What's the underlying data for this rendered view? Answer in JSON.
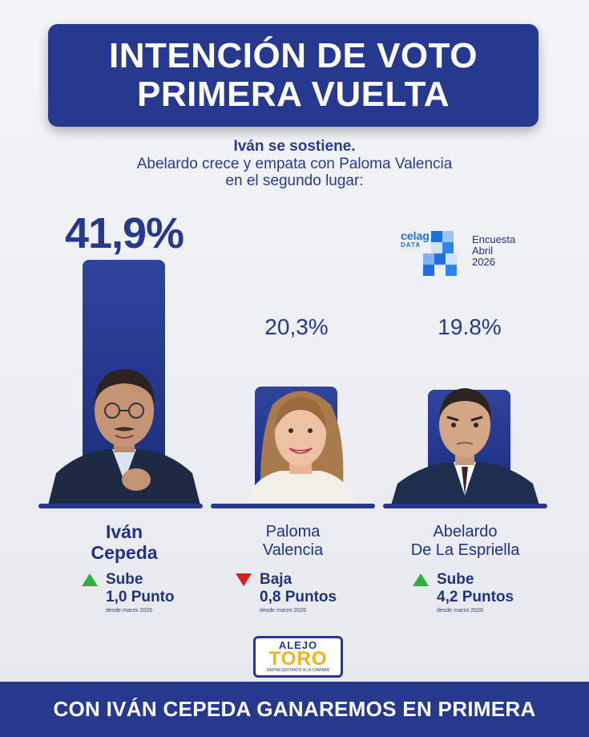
{
  "header": {
    "title_line1": "INTENCIÓN DE VOTO",
    "title_line2": "PRIMERA VUELTA"
  },
  "subtitle": {
    "line1": "Iván se sostiene.",
    "line2": "Abelardo crece y empata con Paloma Valencia",
    "line3": "en el segundo lugar:"
  },
  "source": {
    "logo_word": "celag",
    "logo_sub": "DATA",
    "survey_line1": "Encuesta",
    "survey_line2": "Abril",
    "survey_line3": "2026"
  },
  "chart_data": {
    "type": "bar",
    "categories": [
      "Iván Cepeda",
      "Paloma Valencia",
      "Abelardo De La Espriella"
    ],
    "values": [
      41.9,
      20.3,
      19.8
    ],
    "value_labels": [
      "41,9%",
      "20,3%",
      "19.8%"
    ],
    "ylim": [
      0,
      45
    ],
    "bar_color": "#26398f"
  },
  "candidates": [
    {
      "first": "Iván",
      "last": "Cepeda",
      "change_word": "Sube",
      "change_amount": "1,0 Punto",
      "direction": "up",
      "since": "desde marzo 2026"
    },
    {
      "first": "Paloma",
      "last": "Valencia",
      "change_word": "Baja",
      "change_amount": "0,8 Puntos",
      "direction": "down",
      "since": "desde marzo 2026"
    },
    {
      "first": "Abelardo",
      "last": "De La Espriella",
      "change_word": "Sube",
      "change_amount": "4,2 Puntos",
      "direction": "up",
      "since": "desde marzo 2026"
    }
  ],
  "logo": {
    "line1": "ALEJO",
    "line2": "TORO",
    "line3": "REPRESENTANTE A LA CÁMARA"
  },
  "footer": {
    "text": "CON IVÁN CEPEDA  GANAREMOS EN PRIMERA"
  },
  "colors": {
    "primary_blue": "#26398f",
    "up_green": "#2bb23a",
    "down_red": "#d61f1f",
    "logo_yellow": "#f2b21b"
  }
}
